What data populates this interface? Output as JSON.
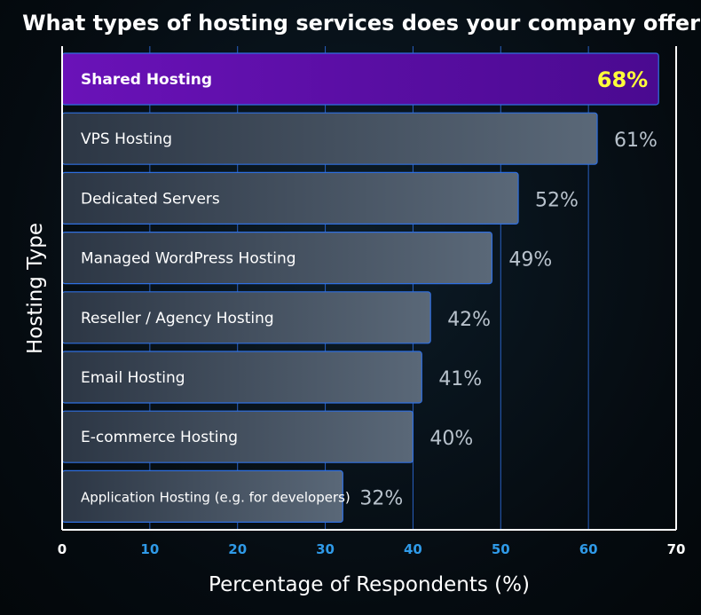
{
  "chart_data": {
    "type": "bar",
    "orientation": "horizontal",
    "title": "What types of hosting services does your company offer?",
    "xlabel": "Percentage of Respondents (%)",
    "ylabel": "Hosting Type",
    "xlim": [
      0,
      70
    ],
    "xticks": [
      0,
      10,
      20,
      30,
      40,
      50,
      60,
      70
    ],
    "grid": "vertical",
    "categories": [
      "Shared Hosting",
      "VPS Hosting",
      "Dedicated Servers",
      "Managed WordPress Hosting",
      "Reseller / Agency Hosting",
      "Email Hosting",
      "E-commerce Hosting",
      "Application Hosting (e.g. for developers)"
    ],
    "values": [
      68,
      61,
      52,
      49,
      42,
      41,
      40,
      32
    ],
    "value_labels": [
      "68%",
      "61%",
      "52%",
      "49%",
      "42%",
      "41%",
      "40%",
      "32%"
    ],
    "highlight_index": 0,
    "colors": {
      "highlight_bar": "#5a0fa0",
      "highlight_value": "#ffff3a",
      "bar": "#3a4656",
      "bar_edge": "#2f6fe0",
      "grid": "#2f6fe0",
      "tick_blue": "#2f9ae8",
      "tick_white": "#ffffff",
      "value_text": "#b8c2cc"
    }
  }
}
